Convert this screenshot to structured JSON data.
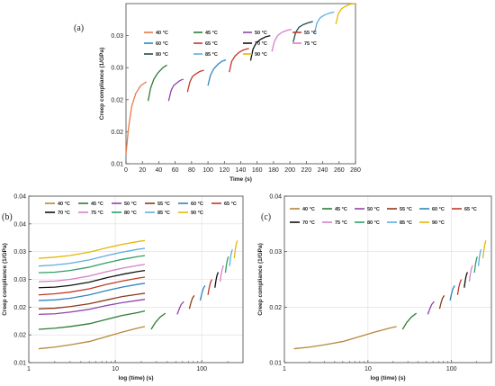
{
  "chart_data": [
    {
      "panel_label": "(a)",
      "type": "line",
      "xlabel": "Time (s)",
      "ylabel": "Creep compliance (1/GPa)",
      "xlim": [
        0,
        280
      ],
      "ylim": [
        0.01,
        0.035
      ],
      "xticks": [
        0,
        20,
        40,
        60,
        80,
        100,
        120,
        140,
        160,
        180,
        200,
        220,
        240,
        260,
        280
      ],
      "ytick_values": [
        0.01,
        0.015,
        0.02,
        0.025,
        0.03
      ],
      "ytick_labels": [
        "0.01",
        "0.02",
        "0.02",
        "0.03",
        "0.03"
      ],
      "legend": "top-left",
      "series": [
        {
          "name": "40 °C",
          "color": "#e8794a",
          "x": [
            0,
            3,
            7,
            12,
            18,
            25
          ],
          "y": [
            0.0115,
            0.0155,
            0.019,
            0.021,
            0.0222,
            0.0228
          ]
        },
        {
          "name": "45 °C",
          "color": "#2e7d32",
          "x": [
            27,
            30,
            34,
            39,
            45,
            50
          ],
          "y": [
            0.0198,
            0.0218,
            0.0232,
            0.0242,
            0.025,
            0.0254
          ]
        },
        {
          "name": "50 °C",
          "color": "#8e44ad",
          "x": [
            52,
            55,
            58,
            62,
            66,
            70
          ],
          "y": [
            0.0198,
            0.0214,
            0.0222,
            0.0226,
            0.023,
            0.0232
          ]
        },
        {
          "name": "55 °C",
          "color": "#c0392b",
          "x": [
            75,
            78,
            81,
            85,
            90,
            95
          ],
          "y": [
            0.0212,
            0.0228,
            0.0236,
            0.024,
            0.0244,
            0.0246
          ]
        },
        {
          "name": "60 °C",
          "color": "#2e86c1",
          "x": [
            100,
            103,
            107,
            112,
            117,
            122
          ],
          "y": [
            0.0222,
            0.0238,
            0.0248,
            0.0255,
            0.026,
            0.0262
          ]
        },
        {
          "name": "65 °C",
          "color": "#c0392b",
          "x": [
            126,
            129,
            133,
            138,
            144,
            150
          ],
          "y": [
            0.0243,
            0.026,
            0.0268,
            0.0274,
            0.0278,
            0.028
          ]
        },
        {
          "name": "70 °C",
          "color": "#111111",
          "x": [
            152,
            155,
            159,
            164,
            170,
            176
          ],
          "y": [
            0.0261,
            0.0279,
            0.0289,
            0.0294,
            0.0298,
            0.03
          ]
        },
        {
          "name": "75 °C",
          "color": "#d680c8",
          "x": [
            178,
            181,
            185,
            190,
            196,
            202
          ],
          "y": [
            0.0275,
            0.0291,
            0.03,
            0.0305,
            0.0308,
            0.031
          ]
        },
        {
          "name": "80 °C",
          "color": "#1f4e4a",
          "x": [
            204,
            207,
            211,
            216,
            222,
            228
          ],
          "y": [
            0.029,
            0.0305,
            0.0313,
            0.0317,
            0.032,
            0.0322
          ]
        },
        {
          "name": "85 °C",
          "color": "#5dade2",
          "x": [
            230,
            233,
            237,
            242,
            248,
            254
          ],
          "y": [
            0.0304,
            0.032,
            0.0328,
            0.0332,
            0.0335,
            0.0337
          ]
        },
        {
          "name": "90 °C",
          "color": "#e6b800",
          "x": [
            256,
            259,
            263,
            268,
            273,
            279
          ],
          "y": [
            0.0318,
            0.0334,
            0.0342,
            0.0346,
            0.0349,
            0.035
          ]
        }
      ]
    },
    {
      "panel_label": "(b)",
      "type": "line",
      "xlabel": "log (time) (s)",
      "ylabel": "Creep compliance (1/GPa)",
      "xscale": "log",
      "xlim": [
        1,
        300
      ],
      "ylim": [
        0.01,
        0.04
      ],
      "xtick_values": [
        1,
        10,
        100
      ],
      "xtick_labels": [
        "1",
        "10",
        "100"
      ],
      "ytick_values": [
        0.01,
        0.015,
        0.02,
        0.025,
        0.03,
        0.035,
        0.04
      ],
      "ytick_labels": [
        "0.01",
        "0.02",
        "0.02",
        "0.03",
        "0.03",
        "0.04",
        "0.04"
      ],
      "legend": "top-left",
      "reference_x": [
        1.3,
        2,
        3,
        5,
        8,
        12,
        18,
        22
      ],
      "reference_series": [
        {
          "name": "40 °C",
          "color": "#b8863b",
          "y": [
            0.0125,
            0.0128,
            0.0132,
            0.0138,
            0.0147,
            0.0155,
            0.0162,
            0.0165
          ]
        },
        {
          "name": "45 °C",
          "color": "#2e7d32",
          "y": [
            0.016,
            0.0162,
            0.0165,
            0.017,
            0.0178,
            0.0185,
            0.019,
            0.0193
          ]
        },
        {
          "name": "50 °C",
          "color": "#8e44ad",
          "y": [
            0.0187,
            0.0188,
            0.0191,
            0.0196,
            0.0203,
            0.0208,
            0.0212,
            0.0214
          ]
        },
        {
          "name": "55 °C",
          "color": "#8b3a1a",
          "y": [
            0.0197,
            0.0198,
            0.0201,
            0.0206,
            0.0213,
            0.0219,
            0.0223,
            0.0225
          ]
        },
        {
          "name": "60 °C",
          "color": "#2e86c1",
          "y": [
            0.0212,
            0.0213,
            0.0216,
            0.0222,
            0.023,
            0.0236,
            0.0241,
            0.0243
          ]
        },
        {
          "name": "65 °C",
          "color": "#c0392b",
          "y": [
            0.0222,
            0.0224,
            0.0227,
            0.0233,
            0.0241,
            0.0247,
            0.0252,
            0.0254
          ]
        },
        {
          "name": "70 °C",
          "color": "#111111",
          "y": [
            0.0235,
            0.0236,
            0.0239,
            0.0245,
            0.0253,
            0.0259,
            0.0264,
            0.0266
          ]
        },
        {
          "name": "75 °C",
          "color": "#d680c8",
          "y": [
            0.0246,
            0.0247,
            0.025,
            0.0256,
            0.0264,
            0.027,
            0.0275,
            0.0277
          ]
        },
        {
          "name": "80 °C",
          "color": "#2f9e6a",
          "y": [
            0.0262,
            0.0263,
            0.0266,
            0.0272,
            0.028,
            0.0286,
            0.0291,
            0.0293
          ]
        },
        {
          "name": "85 °C",
          "color": "#5dade2",
          "y": [
            0.0274,
            0.0276,
            0.0279,
            0.0285,
            0.0293,
            0.0299,
            0.0304,
            0.0306
          ]
        },
        {
          "name": "90 °C",
          "color": "#e6b800",
          "y": [
            0.0288,
            0.029,
            0.0293,
            0.0299,
            0.0307,
            0.0313,
            0.0318,
            0.032
          ]
        }
      ],
      "shifted_segments": [
        {
          "color": "#2e7d32",
          "x": [
            26,
            29,
            33,
            38
          ],
          "y": [
            0.016,
            0.0172,
            0.0182,
            0.0189
          ]
        },
        {
          "color": "#8e44ad",
          "x": [
            52,
            55,
            58,
            62
          ],
          "y": [
            0.0187,
            0.0197,
            0.0205,
            0.021
          ]
        },
        {
          "color": "#8b3a1a",
          "x": [
            72,
            75,
            78,
            82
          ],
          "y": [
            0.0197,
            0.0208,
            0.0216,
            0.0221
          ]
        },
        {
          "color": "#2e86c1",
          "x": [
            96,
            100,
            104,
            109
          ],
          "y": [
            0.0212,
            0.0224,
            0.0233,
            0.0239
          ]
        },
        {
          "color": "#c0392b",
          "x": [
            118,
            122,
            126,
            131
          ],
          "y": [
            0.0222,
            0.0235,
            0.0244,
            0.025
          ]
        },
        {
          "color": "#111111",
          "x": [
            142,
            146,
            150,
            155
          ],
          "y": [
            0.0235,
            0.0248,
            0.0257,
            0.0263
          ]
        },
        {
          "color": "#d680c8",
          "x": [
            163,
            168,
            173,
            178
          ],
          "y": [
            0.0246,
            0.026,
            0.0269,
            0.0275
          ]
        },
        {
          "color": "#2f9e6a",
          "x": [
            188,
            193,
            198,
            203
          ],
          "y": [
            0.0262,
            0.0276,
            0.0285,
            0.0291
          ]
        },
        {
          "color": "#5dade2",
          "x": [
            210,
            215,
            220,
            226
          ],
          "y": [
            0.0274,
            0.0289,
            0.0298,
            0.0304
          ]
        },
        {
          "color": "#e6b800",
          "x": [
            238,
            244,
            250,
            258
          ],
          "y": [
            0.0288,
            0.0303,
            0.0313,
            0.032
          ]
        }
      ]
    },
    {
      "panel_label": "(c)",
      "type": "line",
      "xlabel": "log (time) (s)",
      "ylabel": "Creep compliance (1/GPa)",
      "xscale": "log",
      "xlim": [
        1,
        300
      ],
      "ylim": [
        0.01,
        0.04
      ],
      "xtick_values": [
        1,
        10,
        100
      ],
      "xtick_labels": [
        "1",
        "10",
        "100"
      ],
      "ytick_values": [
        0.01,
        0.02,
        0.03,
        0.04
      ],
      "ytick_labels": [
        "0.01",
        "0.02",
        "0.03",
        "0.04"
      ],
      "legend": "top-left",
      "series": [
        {
          "name": "40 °C",
          "color": "#b8863b",
          "x": [
            1.3,
            2,
            3,
            5,
            8,
            12,
            18,
            22
          ],
          "y": [
            0.0125,
            0.0128,
            0.0132,
            0.0138,
            0.0147,
            0.0155,
            0.0162,
            0.0165
          ]
        },
        {
          "name": "45 °C",
          "color": "#2e7d32",
          "x": [
            26,
            29,
            33,
            38
          ],
          "y": [
            0.016,
            0.0172,
            0.0182,
            0.0189
          ]
        },
        {
          "name": "50 °C",
          "color": "#8e44ad",
          "x": [
            52,
            55,
            58,
            62
          ],
          "y": [
            0.0187,
            0.0197,
            0.0205,
            0.021
          ]
        },
        {
          "name": "55 °C",
          "color": "#8b3a1a",
          "x": [
            72,
            75,
            78,
            82
          ],
          "y": [
            0.0197,
            0.0208,
            0.0216,
            0.0221
          ]
        },
        {
          "name": "60 °C",
          "color": "#2e86c1",
          "x": [
            96,
            100,
            104,
            109
          ],
          "y": [
            0.0212,
            0.0224,
            0.0233,
            0.0239
          ]
        },
        {
          "name": "65 °C",
          "color": "#c0392b",
          "x": [
            118,
            122,
            126,
            131
          ],
          "y": [
            0.0222,
            0.0235,
            0.0244,
            0.025
          ]
        },
        {
          "name": "70 °C",
          "color": "#111111",
          "x": [
            142,
            146,
            150,
            155
          ],
          "y": [
            0.0235,
            0.0248,
            0.0257,
            0.0263
          ]
        },
        {
          "name": "75 °C",
          "color": "#d680c8",
          "x": [
            163,
            168,
            173,
            178
          ],
          "y": [
            0.0246,
            0.026,
            0.0269,
            0.0275
          ]
        },
        {
          "name": "80 °C",
          "color": "#2f9e6a",
          "x": [
            188,
            193,
            198,
            203
          ],
          "y": [
            0.0262,
            0.0276,
            0.0285,
            0.0291
          ]
        },
        {
          "name": "85 °C",
          "color": "#5dade2",
          "x": [
            210,
            215,
            220,
            226
          ],
          "y": [
            0.0274,
            0.0289,
            0.0298,
            0.0304
          ]
        },
        {
          "name": "90 °C",
          "color": "#e6b800",
          "x": [
            238,
            244,
            250,
            258
          ],
          "y": [
            0.0288,
            0.0303,
            0.0313,
            0.032
          ]
        }
      ]
    }
  ]
}
